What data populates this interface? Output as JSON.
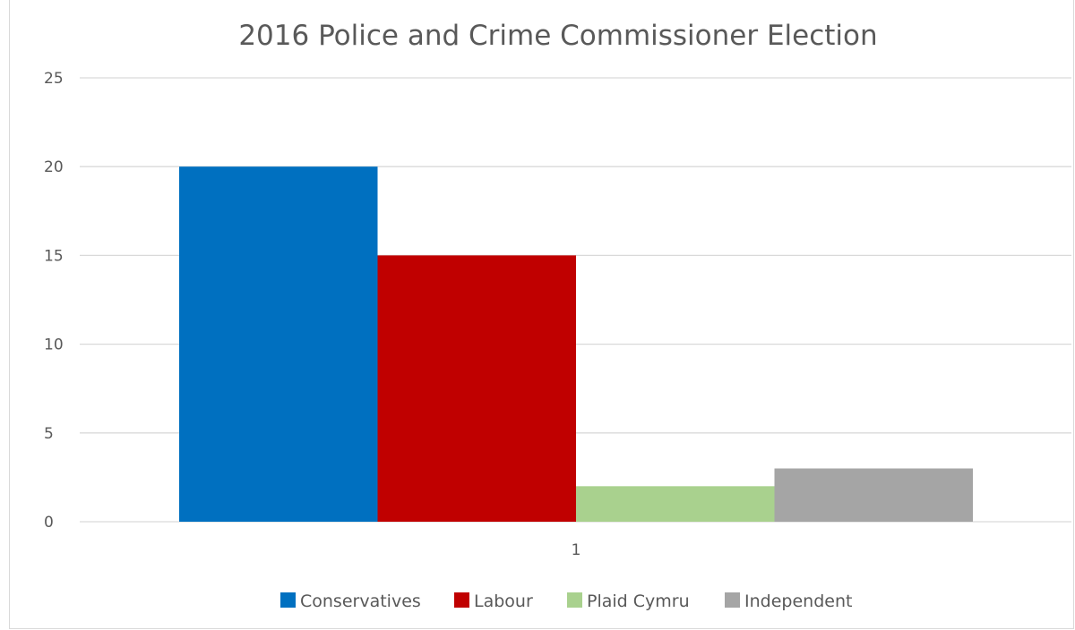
{
  "chart_data": {
    "type": "bar",
    "title": "2016 Police and Crime Commissioner Election",
    "xlabel": "",
    "ylabel": "",
    "categories": [
      "1"
    ],
    "series": [
      {
        "name": "Conservatives",
        "values": [
          20
        ],
        "color": "#0070c0"
      },
      {
        "name": "Labour",
        "values": [
          15
        ],
        "color": "#c00000"
      },
      {
        "name": "Plaid Cymru",
        "values": [
          2
        ],
        "color": "#a9d18e"
      },
      {
        "name": "Independent",
        "values": [
          3
        ],
        "color": "#a5a5a5"
      }
    ],
    "ylim": [
      0,
      25
    ],
    "yticks": [
      "0",
      "5",
      "10",
      "15",
      "20",
      "25"
    ],
    "grid": true,
    "legend_position": "bottom"
  }
}
